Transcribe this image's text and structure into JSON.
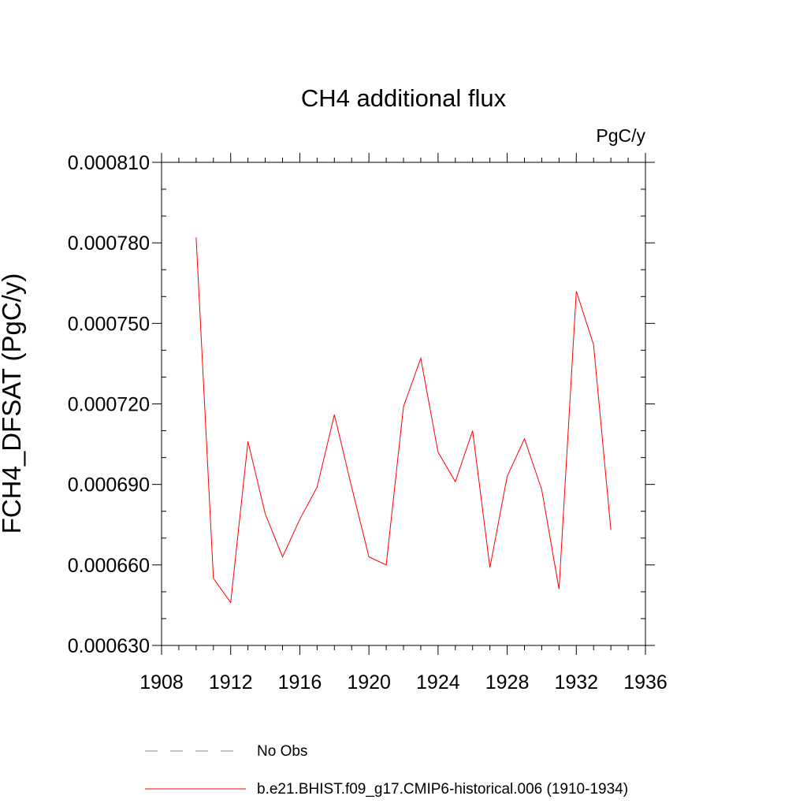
{
  "chart_data": {
    "type": "line",
    "title": "CH4 additional flux",
    "units": "PgC/y",
    "xlabel": "",
    "ylabel": "FCH4_DFSAT  (PgC/y)",
    "xlim": [
      1908,
      1936
    ],
    "ylim": [
      0.00063,
      0.00081
    ],
    "x_ticks": [
      "1908",
      "1912",
      "1916",
      "1920",
      "1924",
      "1928",
      "1932",
      "1936"
    ],
    "y_ticks": [
      "0.000630",
      "0.000660",
      "0.000690",
      "0.000720",
      "0.000750",
      "0.000780",
      "0.000810"
    ],
    "grid": false,
    "legend_position": "bottom",
    "series": [
      {
        "name": "No Obs",
        "color": "#8080c0",
        "style": "dashed",
        "x": [],
        "values": []
      },
      {
        "name": "b.e21.BHIST.f09_g17.CMIP6-historical.006 (1910-1934)",
        "color": "#ff0000",
        "style": "solid",
        "x": [
          1910,
          1911,
          1912,
          1913,
          1914,
          1915,
          1916,
          1917,
          1918,
          1919,
          1920,
          1921,
          1922,
          1923,
          1924,
          1925,
          1926,
          1927,
          1928,
          1929,
          1930,
          1931,
          1932,
          1933,
          1934
        ],
        "values": [
          0.000782,
          0.000655,
          0.000646,
          0.000706,
          0.000679,
          0.000663,
          0.000677,
          0.000689,
          0.000716,
          0.000689,
          0.000663,
          0.00066,
          0.000719,
          0.000737,
          0.000702,
          0.000691,
          0.00071,
          0.000659,
          0.000693,
          0.000707,
          0.000688,
          0.000651,
          0.000762,
          0.000742,
          0.000673
        ]
      }
    ]
  }
}
